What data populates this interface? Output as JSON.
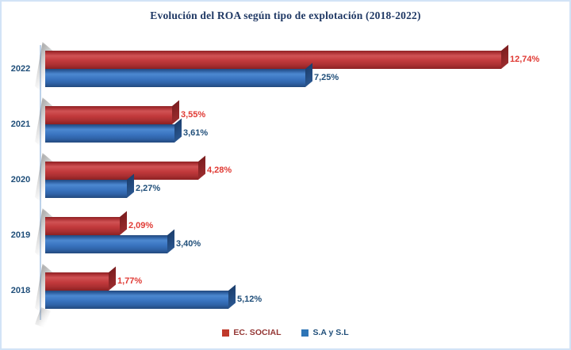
{
  "chart_data": {
    "type": "bar",
    "orientation": "horizontal",
    "title": "Evolución del ROA según tipo de explotación (2018-2022)",
    "title_color": "#1f3864",
    "categories": [
      "2022",
      "2021",
      "2020",
      "2019",
      "2018"
    ],
    "category_label_color": "#1f4e79",
    "series": [
      {
        "name": "EC. SOCIAL",
        "color": "#c0392b",
        "label_color": "#e03a34",
        "legend_text_color": "#943634",
        "values": [
          12.74,
          3.55,
          4.28,
          2.09,
          1.77
        ],
        "labels": [
          "12,74%",
          "3,55%",
          "4,28%",
          "2,09%",
          "1,77%"
        ]
      },
      {
        "name": "S.A y S.L",
        "color": "#2e75b6",
        "label_color": "#1f4e79",
        "legend_text_color": "#1f4e79",
        "values": [
          7.25,
          3.61,
          2.27,
          3.4,
          5.12
        ],
        "labels": [
          "7,25%",
          "3,61%",
          "2,27%",
          "3,40%",
          "5,12%"
        ]
      }
    ],
    "xlim": [
      0,
      14.5
    ],
    "grid": false,
    "legend_position": "bottom",
    "value_suffix": "%",
    "decimal_separator": ","
  }
}
